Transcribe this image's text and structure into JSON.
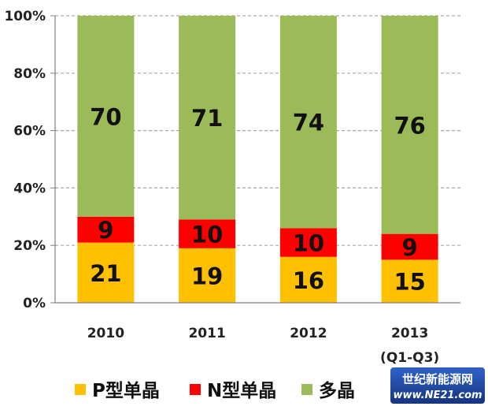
{
  "chart_data": {
    "type": "bar",
    "stacked": true,
    "categories": [
      "2010",
      "2011",
      "2012",
      "2013"
    ],
    "category_sublabels": [
      "",
      "",
      "",
      "(Q1-Q3)"
    ],
    "series": [
      {
        "name": "P型单晶",
        "color": "#ffc000",
        "values": [
          21,
          19,
          16,
          15
        ]
      },
      {
        "name": "N型单晶",
        "color": "#ff0000",
        "values": [
          9,
          10,
          10,
          9
        ]
      },
      {
        "name": "多晶",
        "color": "#9bbb59",
        "values": [
          70,
          71,
          74,
          76
        ]
      }
    ],
    "y_ticks": [
      "0%",
      "20%",
      "40%",
      "60%",
      "80%",
      "100%"
    ],
    "ylim": [
      0,
      100
    ],
    "grid": "dashed-horizontal",
    "legend_position": "bottom"
  },
  "watermark": {
    "line1": "世纪新能源网",
    "line2": "www.NE21.com",
    "colors": [
      "#1a3a8a",
      "#3a6fd0"
    ]
  }
}
